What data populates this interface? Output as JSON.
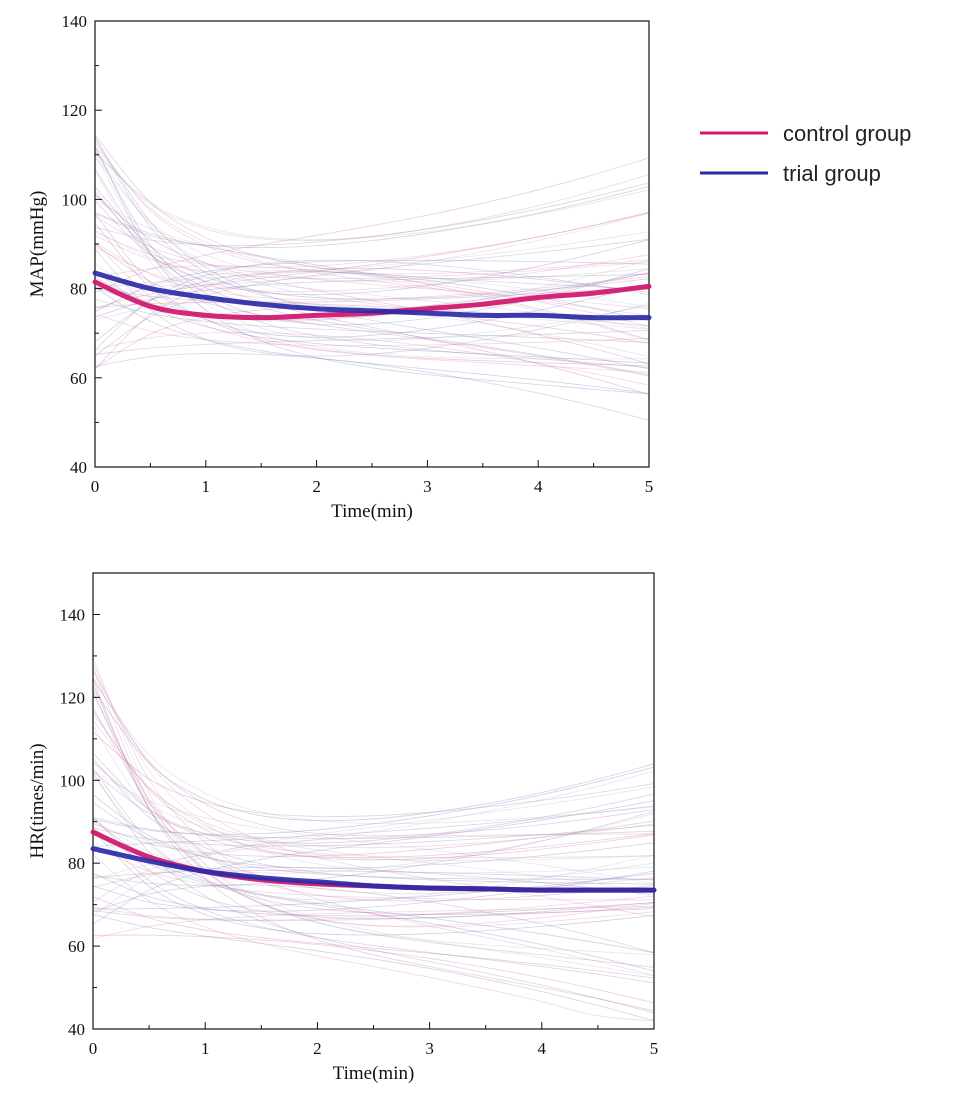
{
  "legend": {
    "items": [
      {
        "label": "control group",
        "color": "#d0156e"
      },
      {
        "label": "trial group",
        "color": "#2b2aa8"
      }
    ]
  },
  "chart_data": [
    {
      "type": "line",
      "title": "",
      "xlabel": "Time(min)",
      "ylabel": "MAP(mmHg)",
      "xlim": [
        0,
        5
      ],
      "ylim": [
        40,
        140
      ],
      "xticks": [
        0,
        1,
        2,
        3,
        4,
        5
      ],
      "yticks": [
        40,
        60,
        80,
        100,
        120,
        140
      ],
      "series": [
        {
          "name": "control group",
          "color": "#d0156e",
          "x": [
            0,
            0.5,
            1,
            1.5,
            2,
            2.5,
            3,
            3.5,
            4,
            4.5,
            5
          ],
          "values": [
            81.5,
            76,
            74,
            73.5,
            74,
            74.5,
            75.5,
            76.5,
            78,
            79,
            80.5
          ]
        },
        {
          "name": "trial group",
          "color": "#2b2aa8",
          "x": [
            0,
            0.5,
            1,
            1.5,
            2,
            2.5,
            3,
            3.5,
            4,
            4.5,
            5
          ],
          "values": [
            83.5,
            80,
            78,
            76.5,
            75.5,
            75,
            74.5,
            74,
            74,
            73.5,
            73.5
          ]
        }
      ]
    },
    {
      "type": "line",
      "title": "",
      "xlabel": "Time(min)",
      "ylabel": "HR(times/min)",
      "xlim": [
        0,
        5
      ],
      "ylim": [
        40,
        150
      ],
      "xticks": [
        0,
        1,
        2,
        3,
        4,
        5
      ],
      "yticks": [
        40,
        60,
        80,
        100,
        120,
        140
      ],
      "series": [
        {
          "name": "control group",
          "color": "#d0156e",
          "x": [
            0,
            0.5,
            1,
            1.5,
            2,
            2.5,
            3,
            3.5,
            4,
            4.5,
            5
          ],
          "values": [
            87.5,
            81.5,
            78,
            76,
            75,
            74.5,
            74,
            73.8,
            73.5,
            73.5,
            73.5
          ]
        },
        {
          "name": "trial group",
          "color": "#2b2aa8",
          "x": [
            0,
            0.5,
            1,
            1.5,
            2,
            2.5,
            3,
            3.5,
            4,
            4.5,
            5
          ],
          "values": [
            83.5,
            80.5,
            78,
            76.5,
            75.5,
            74.5,
            74,
            73.8,
            73.5,
            73.5,
            73.5
          ]
        }
      ]
    }
  ]
}
